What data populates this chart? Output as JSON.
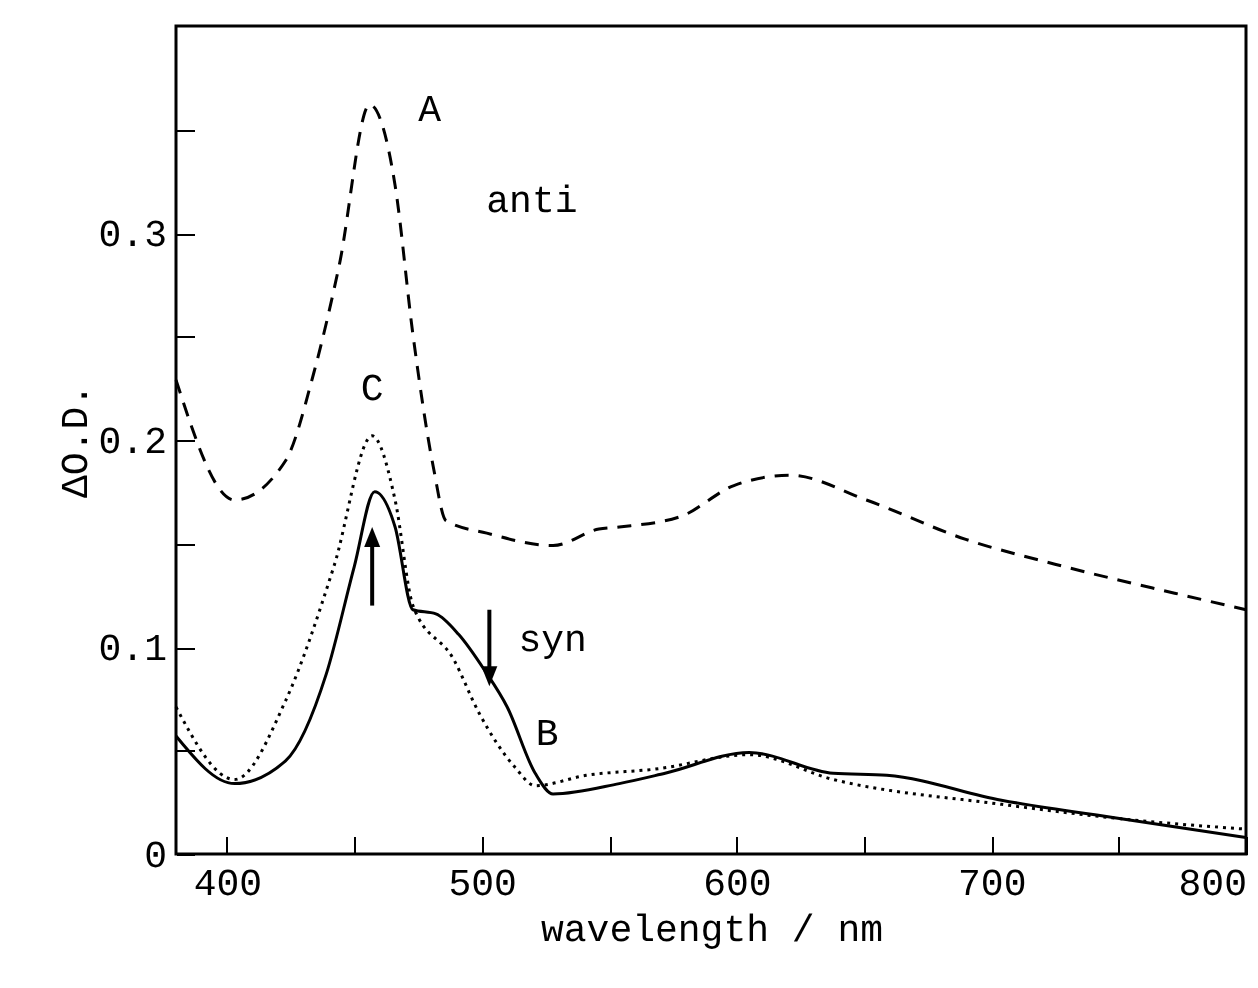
{
  "chart_data": {
    "type": "line",
    "xlabel": "wavelength / nm",
    "ylabel": "ΔO.D.",
    "xlim": [
      380,
      800
    ],
    "ylim": [
      0,
      0.4
    ],
    "xticks": [
      400,
      {
        "value": 450,
        "label": null
      },
      500,
      {
        "value": 550,
        "label": null
      },
      600,
      {
        "value": 650,
        "label": null
      },
      700,
      {
        "value": 750,
        "label": null
      },
      800
    ],
    "yticks": [
      0,
      {
        "value": 0.05,
        "label": null
      },
      0.1,
      {
        "value": 0.15,
        "label": null
      },
      0.2,
      {
        "value": 0.25,
        "label": null
      },
      0.3,
      {
        "value": 0.35,
        "label": null
      }
    ],
    "series": [
      {
        "color": "#000000",
        "line_style": "dashed",
        "x": [
          380,
          403,
          423,
          434,
          444,
          456,
          466,
          473,
          481,
          486,
          502,
          528,
          546,
          554,
          578,
          599,
          621,
          651,
          690,
          725,
          772,
          800
        ],
        "values": [
          0.229,
          0.171,
          0.19,
          0.232,
          0.284,
          0.362,
          0.323,
          0.251,
          0.187,
          0.161,
          0.155,
          0.149,
          0.157,
          0.158,
          0.163,
          0.178,
          0.183,
          0.171,
          0.152,
          0.14,
          0.126,
          0.118
        ]
      },
      {
        "color": "#000000",
        "line_style": "solid",
        "x": [
          380,
          403,
          423,
          439,
          450,
          458,
          466,
          473,
          482,
          491,
          501,
          510,
          521,
          528,
          554,
          572,
          605,
          638,
          659,
          704,
          751,
          800
        ],
        "values": [
          0.057,
          0.034,
          0.045,
          0.087,
          0.139,
          0.175,
          0.158,
          0.118,
          0.116,
          0.106,
          0.089,
          0.071,
          0.039,
          0.029,
          0.034,
          0.039,
          0.049,
          0.039,
          0.038,
          0.026,
          0.017,
          0.008
        ]
      },
      {
        "color": "#000000",
        "line_style": "dotted",
        "x": [
          380,
          403,
          423,
          442,
          457,
          466,
          473,
          489,
          499,
          513,
          521,
          541,
          568,
          605,
          638,
          704,
          751,
          800
        ],
        "values": [
          0.071,
          0.036,
          0.074,
          0.139,
          0.202,
          0.171,
          0.12,
          0.094,
          0.068,
          0.042,
          0.033,
          0.038,
          0.041,
          0.048,
          0.036,
          0.024,
          0.017,
          0.012
        ]
      }
    ],
    "annotations": [
      {
        "text": "A",
        "x": 456,
        "y": 0.362
      },
      "anti",
      {
        "text": "C",
        "x": 457,
        "y": 0.202
      },
      "syn",
      {
        "text": "B",
        "x": 510,
        "y": 0.071
      }
    ]
  }
}
